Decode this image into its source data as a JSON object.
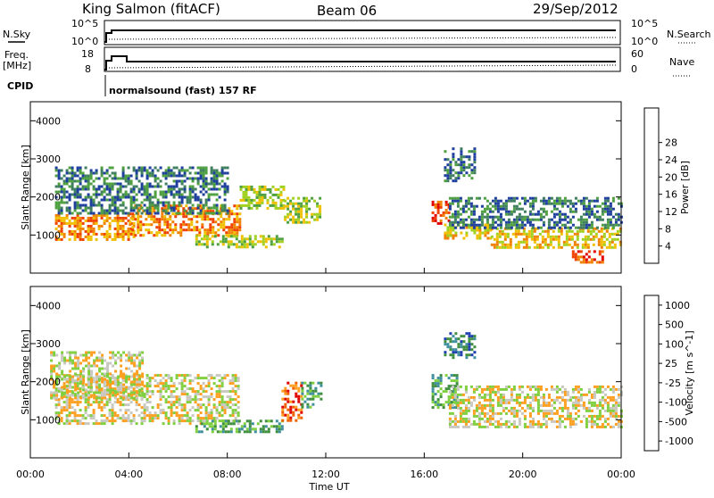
{
  "header": {
    "station": "King Salmon (fitACF)",
    "beam": "Beam 06",
    "date": "29/Sep/2012"
  },
  "strip_panels": {
    "nsky_label": "N.Sky",
    "nsky_ticks": [
      "10^5",
      "10^0"
    ],
    "nsearch_label": "N.Search",
    "nsearch_ticks": [
      "10^5",
      "10^0"
    ],
    "freq_label_1": "Freq.",
    "freq_label_2": "[MHz]",
    "freq_ticks": [
      "18",
      "8"
    ],
    "nave_label": "Nave",
    "nave_ticks": [
      "60",
      "0"
    ],
    "cpid_label": "CPID",
    "cpid_text": "normalsound (fast) 157 RF"
  },
  "chart_data": [
    {
      "type": "heatmap",
      "panel": "power",
      "ylabel": "Slant Range [km]",
      "xlabel": "",
      "xlim": [
        "00:00",
        "24:00"
      ],
      "ylim": [
        0,
        4500
      ],
      "yticks": [
        1000,
        2000,
        3000,
        4000
      ],
      "colorbar": {
        "label": "Power [dB]",
        "ticks": [
          4,
          8,
          12,
          16,
          20,
          24,
          28
        ],
        "colors": [
          "#0000ff",
          "#1f3f9f",
          "#3f7f5f",
          "#4fa040",
          "#a0d020",
          "#f0c000",
          "#f08000",
          "#f04000",
          "#e00000"
        ]
      },
      "echo_regions": [
        {
          "t0": 1.0,
          "t1": 4.2,
          "r0": 900,
          "r1": 1550,
          "power": 24
        },
        {
          "t0": 4.0,
          "t1": 8.5,
          "r0": 1000,
          "r1": 1800,
          "power": 26
        },
        {
          "t0": 8.5,
          "t1": 10.3,
          "r0": 1700,
          "r1": 2300,
          "power": 18
        },
        {
          "t0": 1.0,
          "t1": 8.0,
          "r0": 1600,
          "r1": 2800,
          "power": 8
        },
        {
          "t0": 6.7,
          "t1": 10.2,
          "r0": 650,
          "r1": 1000,
          "power": 18
        },
        {
          "t0": 10.3,
          "t1": 11.8,
          "r0": 1300,
          "r1": 2000,
          "power": 16
        },
        {
          "t0": 16.3,
          "t1": 17.0,
          "r0": 1300,
          "r1": 1900,
          "power": 28
        },
        {
          "t0": 16.8,
          "t1": 18.7,
          "r0": 900,
          "r1": 1300,
          "power": 22
        },
        {
          "t0": 18.7,
          "t1": 24.0,
          "r0": 700,
          "r1": 1200,
          "power": 22
        },
        {
          "t0": 17.0,
          "t1": 24.0,
          "r0": 1200,
          "r1": 2000,
          "power": 8
        },
        {
          "t0": 22.0,
          "t1": 23.2,
          "r0": 300,
          "r1": 600,
          "power": 28
        },
        {
          "t0": 16.8,
          "t1": 18.0,
          "r0": 2400,
          "r1": 3300,
          "power": 8
        }
      ]
    },
    {
      "type": "heatmap",
      "panel": "velocity",
      "ylabel": "Slant Range [km]",
      "xlabel": "Time UT",
      "xlim": [
        "00:00",
        "24:00"
      ],
      "xticks": [
        "00:00",
        "04:00",
        "08:00",
        "12:00",
        "16:00",
        "20:00",
        "00:00"
      ],
      "ylim": [
        0,
        4500
      ],
      "yticks": [
        1000,
        2000,
        3000,
        4000
      ],
      "colorbar": {
        "label": "Velocity [m s^-1]",
        "ticks": [
          1000,
          500,
          100,
          25,
          -25,
          -100,
          -500,
          -1000
        ],
        "colors": [
          "#1f3fb0",
          "#3f8f9f",
          "#3f8f3f",
          "#7fcf3f",
          "#c8c8c0",
          "#ff9f20",
          "#f06000",
          "#e00000"
        ]
      },
      "echo_regions": [
        {
          "t0": 1.0,
          "t1": 8.5,
          "r0": 900,
          "r1": 2200,
          "velocity": 0
        },
        {
          "t0": 0.8,
          "t1": 4.5,
          "r0": 1600,
          "r1": 2800,
          "velocity": 0
        },
        {
          "t0": 6.7,
          "t1": 10.2,
          "r0": 650,
          "r1": 1000,
          "velocity": 150
        },
        {
          "t0": 10.2,
          "t1": 11.0,
          "r0": 1000,
          "r1": 2000,
          "velocity": -400
        },
        {
          "t0": 11.0,
          "t1": 11.8,
          "r0": 1300,
          "r1": 2000,
          "velocity": 150
        },
        {
          "t0": 16.3,
          "t1": 17.3,
          "r0": 1300,
          "r1": 2200,
          "velocity": 150
        },
        {
          "t0": 17.0,
          "t1": 24.0,
          "r0": 800,
          "r1": 1900,
          "velocity": 0
        },
        {
          "t0": 16.8,
          "t1": 18.0,
          "r0": 2600,
          "r1": 3300,
          "velocity": 600
        }
      ]
    }
  ]
}
